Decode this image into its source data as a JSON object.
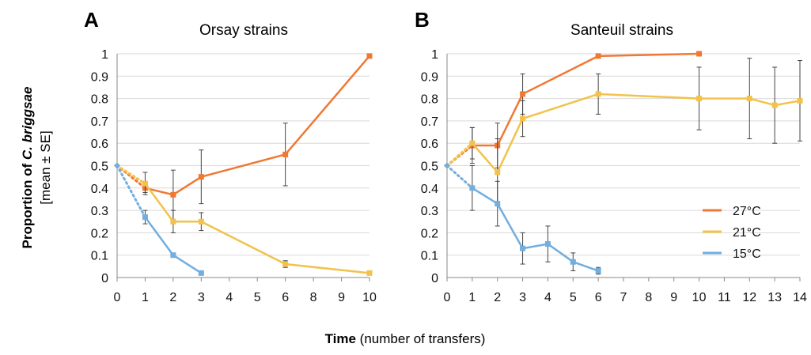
{
  "figure": {
    "ylabel_bold": "Proportion of ",
    "ylabel_italic": "C. briggsae",
    "ylabel_line2": "[mean ± SE]",
    "xlabel_bold": "Time",
    "xlabel_rest": " (number of transfers)"
  },
  "colors": {
    "27C": "#f07833",
    "21C": "#f2c24b",
    "15C": "#72aedf",
    "axis": "#888888",
    "grid": "#d9d9d9",
    "errorbar": "#444444"
  },
  "legend": {
    "placement": "lower-right of panel B",
    "entries": [
      "27°C",
      "21°C",
      "15°C"
    ]
  },
  "chart_data": [
    {
      "type": "line",
      "panel_letter": "A",
      "title": "Orsay strains",
      "xlabel": "",
      "ylabel": "",
      "x_categories": [
        "0",
        "1",
        "2",
        "3",
        "4",
        "5",
        "6",
        "8",
        "9",
        "10"
      ],
      "y_ticks": [
        "0",
        "0.1",
        "0.2",
        "0.3",
        "0.4",
        "0.5",
        "0.6",
        "0.7",
        "0.8",
        "0.9",
        "1"
      ],
      "ylim": [
        0,
        1
      ],
      "grid": "horizontal",
      "dotted_first_segment": true,
      "series": [
        {
          "name": "27°C",
          "color_key": "27C",
          "points": [
            [
              "0",
              0.5,
              null
            ],
            [
              "1",
              0.4,
              0.02
            ],
            [
              "2",
              0.37,
              0.11
            ],
            [
              "3",
              0.45,
              0.12
            ],
            [
              "6",
              0.55,
              0.14
            ],
            [
              "10",
              0.99,
              null
            ]
          ]
        },
        {
          "name": "21°C",
          "color_key": "21C",
          "points": [
            [
              "0",
              0.5,
              null
            ],
            [
              "1",
              0.42,
              0.05
            ],
            [
              "2",
              0.25,
              0.05
            ],
            [
              "3",
              0.25,
              0.04
            ],
            [
              "6",
              0.06,
              0.015
            ],
            [
              "10",
              0.02,
              null
            ]
          ]
        },
        {
          "name": "15°C",
          "color_key": "15C",
          "points": [
            [
              "0",
              0.5,
              null
            ],
            [
              "1",
              0.27,
              0.03
            ],
            [
              "2",
              0.1,
              null
            ],
            [
              "3",
              0.02,
              null
            ]
          ]
        }
      ]
    },
    {
      "type": "line",
      "panel_letter": "B",
      "title": "Santeuil strains",
      "xlabel": "",
      "ylabel": "",
      "x_categories": [
        "0",
        "1",
        "2",
        "3",
        "4",
        "5",
        "6",
        "7",
        "8",
        "9",
        "10",
        "11",
        "12",
        "13",
        "14"
      ],
      "y_ticks": [
        "0",
        "0.1",
        "0.2",
        "0.3",
        "0.4",
        "0.5",
        "0.6",
        "0.7",
        "0.8",
        "0.9",
        "1"
      ],
      "ylim": [
        0,
        1
      ],
      "grid": "horizontal",
      "dotted_first_segment": true,
      "series": [
        {
          "name": "27°C",
          "color_key": "27C",
          "points": [
            [
              "0",
              0.5,
              null
            ],
            [
              "1",
              0.59,
              0.08
            ],
            [
              "2",
              0.59,
              0.1
            ],
            [
              "3",
              0.82,
              0.09
            ],
            [
              "6",
              0.99,
              null
            ],
            [
              "10",
              1.0,
              null
            ]
          ]
        },
        {
          "name": "21°C",
          "color_key": "21C",
          "points": [
            [
              "0",
              0.5,
              null
            ],
            [
              "1",
              0.6,
              0.07
            ],
            [
              "2",
              0.47,
              0.15
            ],
            [
              "3",
              0.71,
              0.08
            ],
            [
              "6",
              0.82,
              0.09
            ],
            [
              "10",
              0.8,
              0.14
            ],
            [
              "12",
              0.8,
              0.18
            ],
            [
              "13",
              0.77,
              0.17
            ],
            [
              "14",
              0.79,
              0.18
            ]
          ]
        },
        {
          "name": "15°C",
          "color_key": "15C",
          "points": [
            [
              "0",
              0.5,
              null
            ],
            [
              "1",
              0.4,
              0.1
            ],
            [
              "2",
              0.33,
              0.1
            ],
            [
              "3",
              0.13,
              0.07
            ],
            [
              "4",
              0.15,
              0.08
            ],
            [
              "5",
              0.07,
              0.04
            ],
            [
              "6",
              0.03,
              0.015
            ]
          ]
        }
      ]
    }
  ]
}
